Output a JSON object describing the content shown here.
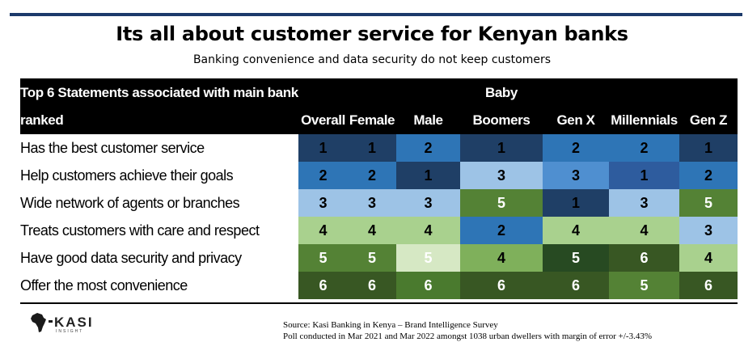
{
  "title": "Its all about customer service for Kenyan banks",
  "subtitle": "Banking convenience and data security  do not keep customers",
  "logo": {
    "text": "KASI",
    "tagline": "INSIGHT"
  },
  "source_line1": "Source: Kasi Banking in Kenya – Brand Intelligence Survey",
  "source_line2": "Poll conducted in Mar 2021 and Mar 2022 amongst 1038 urban dwellers with margin of error +/-3.43%",
  "rank_colors": {
    "1": {
      "bg": "#1f3f66",
      "fg": "#000000"
    },
    "2": {
      "bg": "#2e75b6",
      "fg": "#000000"
    },
    "3": {
      "bg": "#9dc3e6",
      "fg": "#000000"
    },
    "4": {
      "bg": "#a9d18e",
      "fg": "#000000"
    },
    "5": {
      "bg": "#548235",
      "fg": "#ffffff"
    },
    "6": {
      "bg": "#385723",
      "fg": "#ffffff"
    }
  },
  "rank_overrides": {
    "1-4": "#4f8fd0",
    "1-5": "#2e5c9e",
    "4-2": "#d6e8c4",
    "4-3": "#7fb05b",
    "4-4": "#274a22",
    "5-2": "#4a7a2e"
  },
  "chart_data": {
    "type": "table",
    "header_label_line1": "Top 6 Statements associated with main bank",
    "header_label_line2": "ranked",
    "columns": [
      {
        "line1": "",
        "line2": "Overall"
      },
      {
        "line1": "",
        "line2": "Female"
      },
      {
        "line1": "",
        "line2": "Male"
      },
      {
        "line1": "Baby",
        "line2": "Boomers"
      },
      {
        "line1": "",
        "line2": "Gen X"
      },
      {
        "line1": "",
        "line2": "Millennials"
      },
      {
        "line1": "",
        "line2": "Gen Z"
      }
    ],
    "rows": [
      {
        "statement": "Has the best customer service",
        "values": [
          1,
          1,
          2,
          1,
          2,
          2,
          1
        ]
      },
      {
        "statement": "Help customers achieve their goals",
        "values": [
          2,
          2,
          1,
          3,
          3,
          1,
          2
        ]
      },
      {
        "statement": "Wide network of agents or branches",
        "values": [
          3,
          3,
          3,
          5,
          1,
          3,
          5
        ]
      },
      {
        "statement": "Treats customers with care and respect",
        "values": [
          4,
          4,
          4,
          2,
          4,
          4,
          3
        ]
      },
      {
        "statement": "Have good data security and privacy",
        "values": [
          5,
          5,
          5,
          4,
          5,
          6,
          4
        ]
      },
      {
        "statement": "Offer the most convenience",
        "values": [
          6,
          6,
          6,
          6,
          6,
          5,
          6
        ]
      }
    ]
  }
}
